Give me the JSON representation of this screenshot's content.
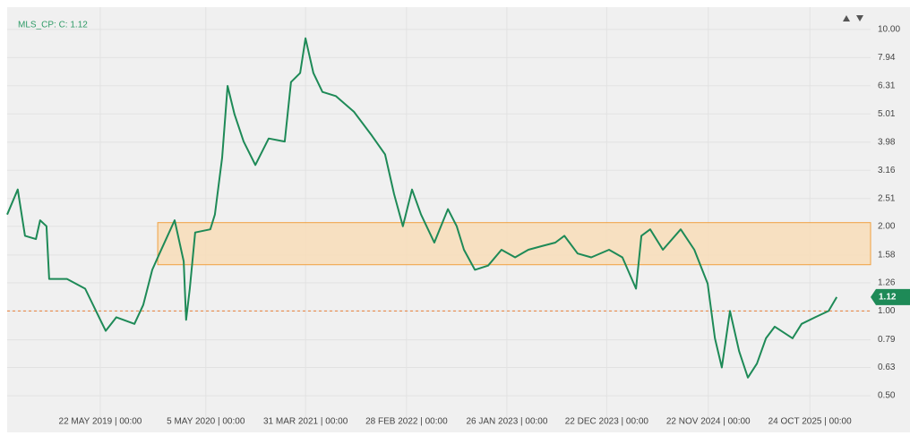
{
  "chart_data": {
    "type": "line",
    "legend_text": "MLS_CP: C: 1.12",
    "yscale": "log",
    "grid": true,
    "ylim": [
      0.445,
      12.0
    ],
    "yticks": [
      {
        "value": 10,
        "label": "10.00"
      },
      7.94,
      6.31,
      5.01,
      3.98,
      3.16,
      2.51,
      {
        "value": 2,
        "label": "2.00"
      },
      1.58,
      1.26,
      {
        "value": 1,
        "label": "1.00"
      },
      0.79,
      0.63,
      {
        "value": 0.5,
        "label": "0.50"
      }
    ],
    "xlim": [
      "2018-07-18",
      "2026-05-13"
    ],
    "xticks": [
      {
        "value": "2019-05-22",
        "label": "22 MAY 2019 | 00:00"
      },
      {
        "value": "2020-05-05",
        "label": "5 MAY 2020 | 00:00"
      },
      {
        "value": "2021-03-31",
        "label": "31 MAR 2021 | 00:00"
      },
      {
        "value": "2022-02-28",
        "label": "28 FEB 2022 | 00:00"
      },
      {
        "value": "2023-01-26",
        "label": "26 JAN 2023 | 00:00"
      },
      {
        "value": "2023-12-22",
        "label": "22 DEC 2023 | 00:00"
      },
      {
        "value": "2024-11-22",
        "label": "22 NOV 2024 | 00:00"
      },
      {
        "value": "2025-10-24",
        "label": "24 OCT 2025 | 00:00"
      }
    ],
    "x": [
      "2018-07-18",
      "2018-08-22",
      "2018-09-15",
      "2018-10-21",
      "2018-11-04",
      "2018-11-25",
      "2018-12-04",
      "2019-02-01",
      "2019-04-02",
      "2019-05-22",
      "2019-06-09",
      "2019-07-14",
      "2019-09-12",
      "2019-10-11",
      "2019-11-10",
      "2019-12-04",
      "2020-01-23",
      "2020-02-22",
      "2020-03-01",
      "2020-03-13",
      "2020-03-31",
      "2020-05-20",
      "2020-06-04",
      "2020-06-28",
      "2020-07-16",
      "2020-08-08",
      "2020-09-07",
      "2020-10-16",
      "2020-11-29",
      "2021-01-21",
      "2021-02-11",
      "2021-03-13",
      "2021-03-31",
      "2021-04-26",
      "2021-05-26",
      "2021-07-09",
      "2021-09-07",
      "2021-11-05",
      "2021-12-19",
      "2022-01-18",
      "2022-02-16",
      "2022-03-18",
      "2022-04-17",
      "2022-05-31",
      "2022-07-15",
      "2022-08-13",
      "2022-09-06",
      "2022-10-12",
      "2022-11-25",
      "2023-01-08",
      "2023-02-22",
      "2023-04-07",
      "2023-05-22",
      "2023-07-05",
      "2023-08-04",
      "2023-09-17",
      "2023-11-01",
      "2023-12-30",
      "2024-02-12",
      "2024-03-28",
      "2024-04-15",
      "2024-05-14",
      "2024-06-25",
      "2024-08-23",
      "2024-10-07",
      "2024-11-20",
      "2024-12-14",
      "2025-01-06",
      "2025-02-02",
      "2025-03-04",
      "2025-04-02",
      "2025-05-02",
      "2025-06-01",
      "2025-06-30",
      "2025-08-28",
      "2025-09-27",
      "2025-11-11",
      "2025-12-25",
      "2026-01-21"
    ],
    "series": [
      {
        "name": "MLS_CP",
        "color": "#1e8a57",
        "values": [
          2.2,
          2.7,
          1.85,
          1.8,
          2.1,
          2.0,
          1.3,
          1.3,
          1.2,
          0.93,
          0.85,
          0.95,
          0.9,
          1.05,
          1.4,
          1.6,
          2.1,
          1.5,
          0.93,
          1.2,
          1.9,
          1.95,
          2.2,
          3.5,
          6.3,
          5.0,
          4.0,
          3.3,
          4.1,
          4.0,
          6.5,
          7.0,
          9.3,
          7.0,
          6.0,
          5.8,
          5.1,
          4.2,
          3.6,
          2.6,
          2.0,
          2.7,
          2.2,
          1.75,
          2.3,
          2.0,
          1.65,
          1.4,
          1.45,
          1.65,
          1.55,
          1.65,
          1.7,
          1.75,
          1.85,
          1.6,
          1.55,
          1.65,
          1.55,
          1.2,
          1.85,
          1.95,
          1.65,
          1.95,
          1.65,
          1.25,
          0.8,
          0.63,
          1.0,
          0.72,
          0.58,
          0.65,
          0.8,
          0.88,
          0.8,
          0.9,
          0.95,
          1.0,
          1.12
        ]
      }
    ],
    "zone": {
      "x0": "2019-11-28",
      "ymin": 1.46,
      "ymax": 2.06,
      "fill": "#f8ddb8",
      "stroke": "#f0a040"
    },
    "ref_line": {
      "value": 1,
      "color": "#e8803a"
    }
  }
}
